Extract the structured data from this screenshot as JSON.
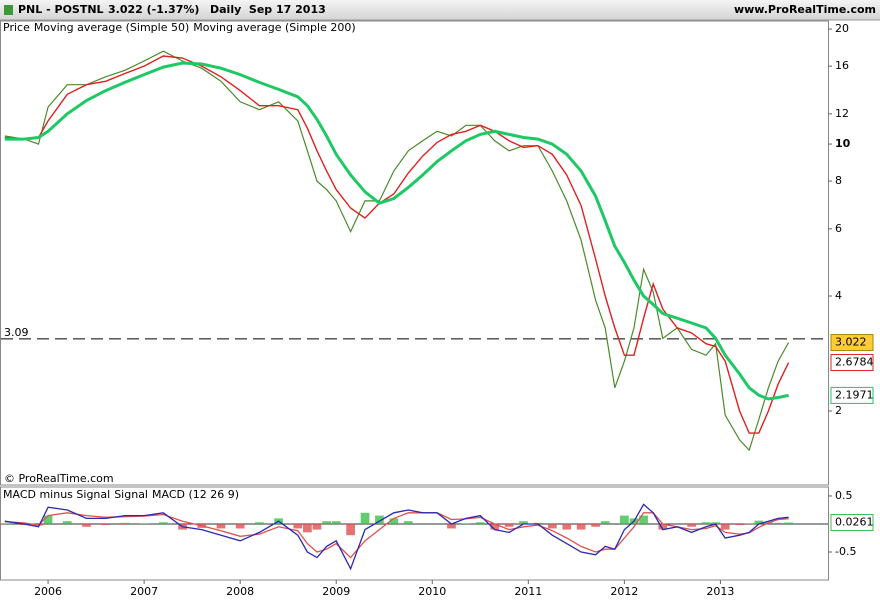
{
  "chart_data": [
    {
      "type": "line",
      "title": "PNL - POSTNL",
      "subtitle": "3.022 (-1.37%)",
      "period": "Daily  Sep 17 2013",
      "source": "www.ProRealTime.com",
      "copyright": "© ProRealTime.com",
      "log": true,
      "hline": 3.09,
      "x": [
        2005.55,
        2005.75,
        2005.9,
        2006.0,
        2006.2,
        2006.4,
        2006.6,
        2006.8,
        2007.0,
        2007.2,
        2007.4,
        2007.6,
        2007.8,
        2008.0,
        2008.2,
        2008.4,
        2008.6,
        2008.7,
        2008.8,
        2008.9,
        2009.0,
        2009.15,
        2009.3,
        2009.45,
        2009.6,
        2009.75,
        2009.9,
        2010.05,
        2010.2,
        2010.35,
        2010.5,
        2010.65,
        2010.8,
        2010.95,
        2011.1,
        2011.25,
        2011.4,
        2011.55,
        2011.7,
        2011.8,
        2011.9,
        2012.0,
        2012.1,
        2012.2,
        2012.3,
        2012.4,
        2012.55,
        2012.7,
        2012.85,
        2012.95,
        2013.05,
        2013.2,
        2013.3,
        2013.4,
        2013.5,
        2013.6,
        2013.71
      ],
      "series": [
        {
          "name": "Price",
          "color": "#4a8a2a",
          "values": [
            10.5,
            10.3,
            10.0,
            12.5,
            14.3,
            14.3,
            15.0,
            15.6,
            16.5,
            17.5,
            16.5,
            15.8,
            14.6,
            12.9,
            12.3,
            12.9,
            11.5,
            9.6,
            8.0,
            7.6,
            7.1,
            5.9,
            7.1,
            7.1,
            8.5,
            9.6,
            10.2,
            10.8,
            10.5,
            11.2,
            11.2,
            10.2,
            9.6,
            9.9,
            9.9,
            8.5,
            7.1,
            5.6,
            3.9,
            3.3,
            2.3,
            2.7,
            3.3,
            4.7,
            4.1,
            3.1,
            3.3,
            2.9,
            2.8,
            3.0,
            1.95,
            1.68,
            1.58,
            1.9,
            2.3,
            2.7,
            3.022
          ]
        },
        {
          "name": "Moving average (Simple 50)",
          "color": "#e02020",
          "values": [
            10.4,
            10.3,
            10.4,
            11.5,
            13.5,
            14.3,
            14.6,
            15.3,
            16.0,
            17.0,
            16.8,
            16.0,
            15.0,
            13.8,
            12.6,
            12.6,
            12.3,
            11.0,
            9.6,
            8.5,
            7.6,
            6.8,
            6.4,
            7.0,
            7.4,
            8.4,
            9.3,
            10.1,
            10.6,
            10.8,
            11.2,
            10.8,
            10.2,
            9.8,
            9.9,
            9.4,
            8.3,
            6.9,
            5.0,
            4.0,
            3.3,
            2.8,
            2.8,
            3.5,
            4.3,
            3.7,
            3.3,
            3.2,
            3.0,
            2.95,
            2.7,
            2.0,
            1.75,
            1.75,
            2.0,
            2.35,
            2.6784
          ]
        },
        {
          "name": "Moving average (Simple 200)",
          "color": "#1ec864",
          "values": [
            10.3,
            10.3,
            10.4,
            10.8,
            12.0,
            13.0,
            13.8,
            14.5,
            15.2,
            15.9,
            16.3,
            16.2,
            15.8,
            15.2,
            14.5,
            13.9,
            13.3,
            12.6,
            11.6,
            10.5,
            9.4,
            8.3,
            7.5,
            7.0,
            7.2,
            7.7,
            8.3,
            9.0,
            9.6,
            10.2,
            10.6,
            10.8,
            10.6,
            10.4,
            10.3,
            10.0,
            9.4,
            8.5,
            7.3,
            6.3,
            5.4,
            4.9,
            4.4,
            4.0,
            3.8,
            3.6,
            3.5,
            3.4,
            3.3,
            3.1,
            2.8,
            2.5,
            2.3,
            2.2,
            2.15,
            2.17,
            2.1971
          ]
        }
      ],
      "xlim": [
        2005.51,
        2014.12
      ],
      "xticks": [
        2006,
        2007,
        2008,
        2009,
        2010,
        2011,
        2012,
        2013
      ],
      "ylim": [
        1.28,
        21
      ],
      "yticks": [
        2,
        4,
        6,
        8,
        10,
        12,
        16,
        20
      ]
    },
    {
      "type": "line",
      "x": [
        2005.55,
        2005.75,
        2005.9,
        2006.0,
        2006.2,
        2006.4,
        2006.6,
        2006.8,
        2007.0,
        2007.2,
        2007.4,
        2007.6,
        2007.8,
        2008.0,
        2008.2,
        2008.4,
        2008.6,
        2008.7,
        2008.8,
        2008.9,
        2009.0,
        2009.15,
        2009.3,
        2009.45,
        2009.6,
        2009.75,
        2009.9,
        2010.05,
        2010.2,
        2010.35,
        2010.5,
        2010.65,
        2010.8,
        2010.95,
        2011.1,
        2011.25,
        2011.4,
        2011.55,
        2011.7,
        2011.8,
        2011.9,
        2012.0,
        2012.1,
        2012.2,
        2012.3,
        2012.4,
        2012.55,
        2012.7,
        2012.85,
        2012.95,
        2013.05,
        2013.2,
        2013.3,
        2013.4,
        2013.5,
        2013.6,
        2013.71
      ],
      "series": [
        {
          "name": "MACD minus Signal",
          "style": "bar",
          "color": "#3cbf4c",
          "negative_color": "#e05050",
          "values": [
            0.01,
            -0.02,
            -0.03,
            0.15,
            0.05,
            -0.05,
            -0.02,
            0.02,
            0.01,
            0.03,
            -0.1,
            -0.07,
            -0.08,
            -0.08,
            0.03,
            0.1,
            -0.08,
            -0.15,
            -0.1,
            0.05,
            0.05,
            -0.2,
            0.2,
            0.15,
            0.1,
            0.05,
            0,
            0,
            -0.08,
            0.01,
            0.03,
            -0.1,
            -0.05,
            0.05,
            0.02,
            -0.08,
            -0.1,
            -0.1,
            -0.05,
            0.05,
            0,
            0.15,
            0.1,
            0.15,
            0,
            -0.1,
            0,
            -0.05,
            0.03,
            0.03,
            -0.1,
            -0.02,
            0.01,
            0.06,
            0.03,
            0.02,
            0.0261
          ]
        },
        {
          "name": "Signal",
          "style": "line",
          "color": "#e05050",
          "values": [
            0.04,
            0.02,
            -0.02,
            0.15,
            0.2,
            0.15,
            0.12,
            0.13,
            0.14,
            0.17,
            0.05,
            -0.03,
            -0.12,
            -0.22,
            -0.18,
            -0.05,
            -0.12,
            -0.35,
            -0.5,
            -0.45,
            -0.35,
            -0.6,
            -0.3,
            -0.1,
            0.1,
            0.2,
            0.2,
            0.2,
            0.08,
            0.09,
            0.12,
            0.0,
            -0.1,
            -0.05,
            -0.02,
            -0.12,
            -0.25,
            -0.4,
            -0.5,
            -0.45,
            -0.45,
            -0.25,
            -0.05,
            0.2,
            0.2,
            0.0,
            -0.05,
            -0.1,
            -0.08,
            -0.03,
            -0.15,
            -0.18,
            -0.16,
            -0.06,
            0.02,
            0.08,
            0.0939
          ]
        },
        {
          "name": "MACD (12 26 9)",
          "style": "line",
          "color": "#2a2ab0",
          "values": [
            0.05,
            0.0,
            -0.05,
            0.3,
            0.25,
            0.1,
            0.1,
            0.15,
            0.15,
            0.2,
            -0.05,
            -0.1,
            -0.2,
            -0.3,
            -0.15,
            0.05,
            -0.2,
            -0.5,
            -0.6,
            -0.4,
            -0.3,
            -0.8,
            -0.1,
            0.05,
            0.2,
            0.25,
            0.2,
            0.2,
            0.0,
            0.1,
            0.15,
            -0.1,
            -0.15,
            0.0,
            0.0,
            -0.2,
            -0.35,
            -0.5,
            -0.55,
            -0.4,
            -0.45,
            -0.1,
            0.05,
            0.35,
            0.2,
            -0.1,
            -0.05,
            -0.15,
            -0.05,
            0.0,
            -0.25,
            -0.2,
            -0.15,
            0.0,
            0.05,
            0.1,
            0.12
          ]
        }
      ],
      "xlim": [
        2005.51,
        2014.12
      ],
      "ylim": [
        -1.0,
        0.66
      ],
      "yticks": [
        0.5,
        -0.5
      ]
    }
  ]
}
